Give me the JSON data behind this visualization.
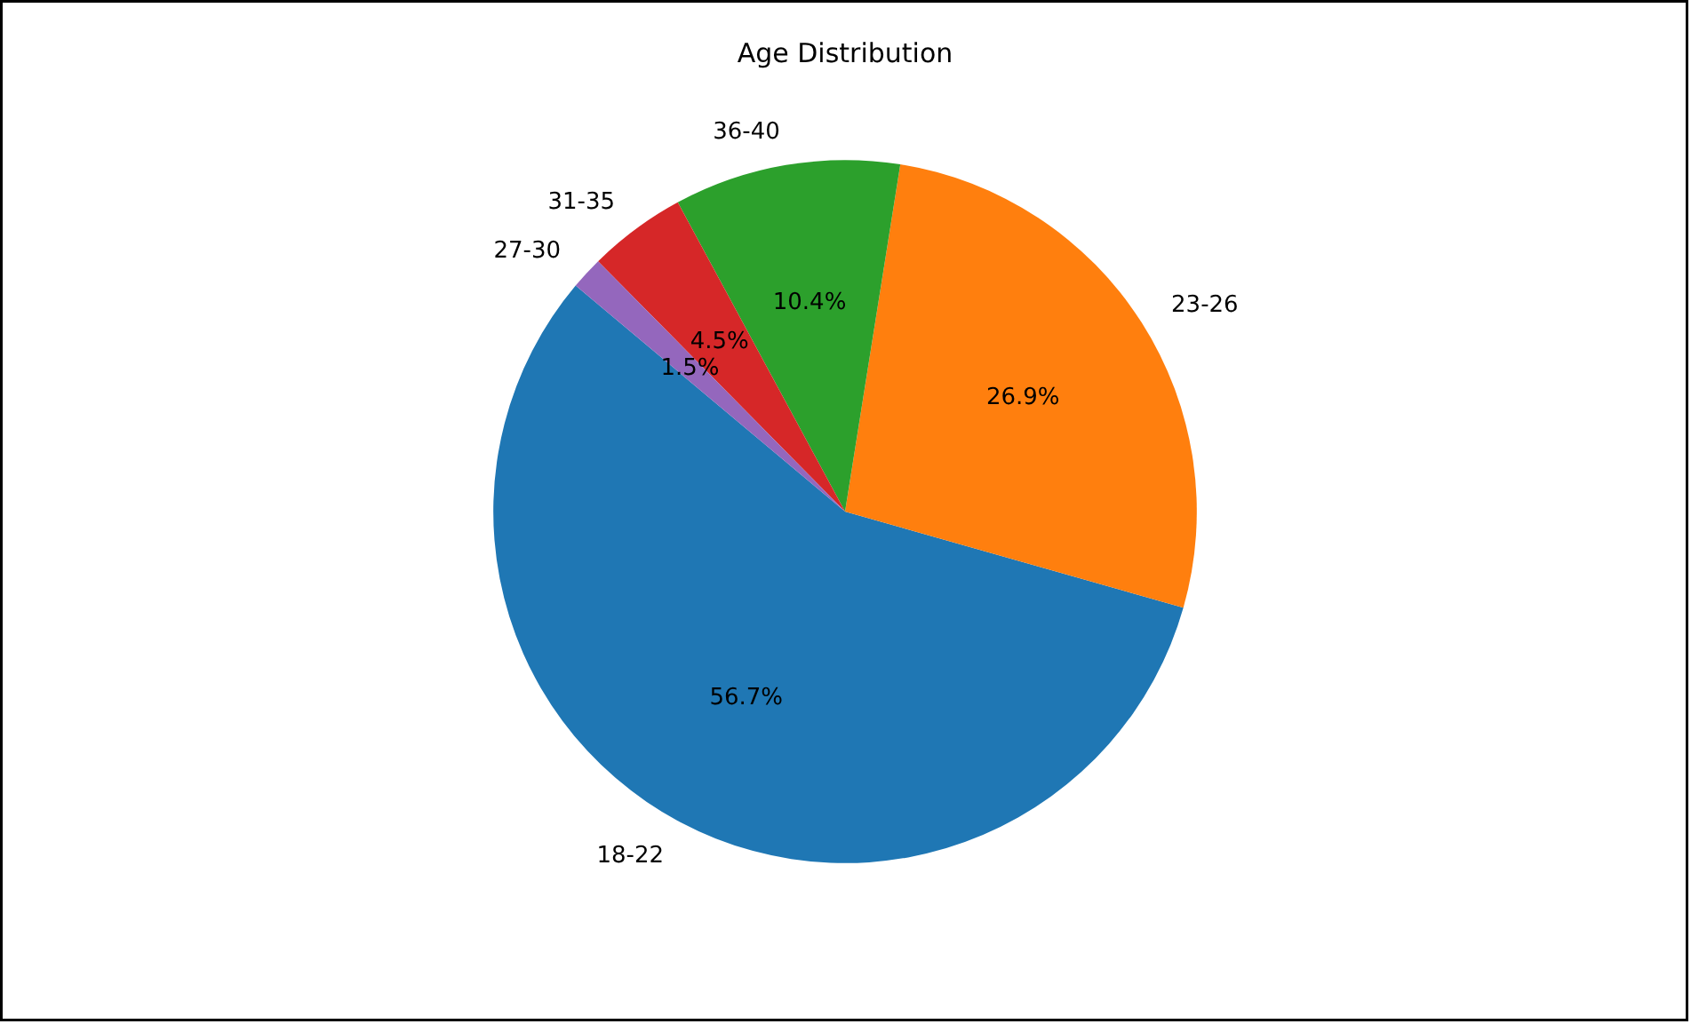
{
  "chart_data": {
    "type": "pie",
    "title": "Age Distribution",
    "categories": [
      "18-22",
      "23-26",
      "36-40",
      "31-35",
      "27-30"
    ],
    "values": [
      56.7,
      26.9,
      10.4,
      4.5,
      1.5
    ],
    "colors": [
      "#1f77b4",
      "#ff7f0e",
      "#2ca02c",
      "#d62728",
      "#9467bd"
    ],
    "value_labels": [
      "56.7%",
      "26.9%",
      "10.4%",
      "4.5%",
      "1.5%"
    ]
  }
}
